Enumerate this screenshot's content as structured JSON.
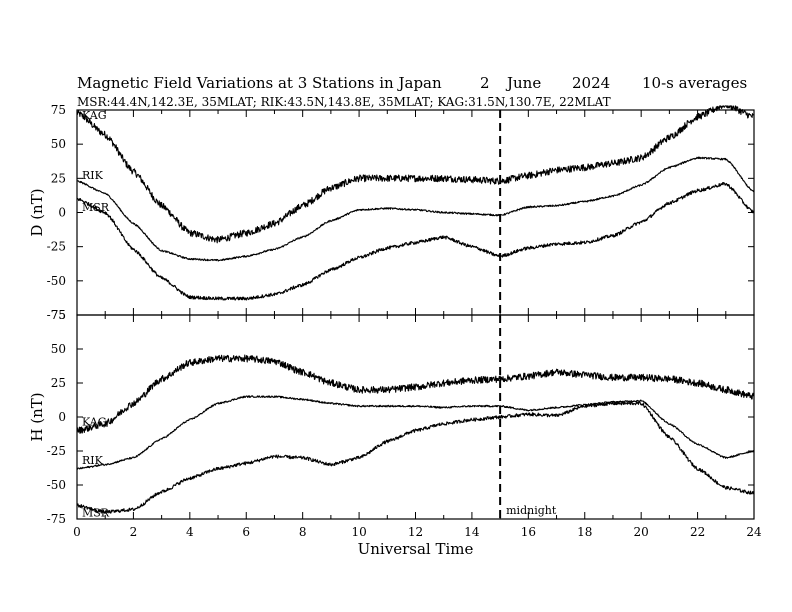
{
  "header": {
    "title": "Magnetic Field Variations at 3 Stations in Japan",
    "day": "2",
    "month": "June",
    "year": "2024",
    "averaging": "10-s averages",
    "station_info": "MSR:44.4N,142.3E, 35MLAT;  RIK:43.5N,143.8E, 35MLAT;  KAG:31.5N,130.7E, 22MLAT"
  },
  "chart_data": [
    {
      "type": "line",
      "ylabel": "D (nT)",
      "xlabel": "",
      "xlim": [
        0,
        24
      ],
      "ylim": [
        -75,
        75
      ],
      "yticks": [
        "75",
        "50",
        "25",
        "0",
        "-25",
        "-50",
        "-75"
      ],
      "series": [
        {
          "name": "KAG",
          "noise": 2.5,
          "x": [
            0,
            1,
            2,
            3,
            4,
            5,
            6,
            7,
            8,
            9,
            10,
            11,
            12,
            13,
            14,
            15,
            16,
            17,
            18,
            19,
            20,
            21,
            22,
            23,
            24
          ],
          "values": [
            73,
            57,
            30,
            5,
            -15,
            -20,
            -15,
            -8,
            5,
            18,
            25,
            25,
            25,
            25,
            24,
            23,
            27,
            31,
            33,
            36,
            40,
            55,
            70,
            79,
            70
          ]
        },
        {
          "name": "RIK",
          "noise": 0.6,
          "x": [
            0,
            1,
            2,
            3,
            4,
            5,
            6,
            7,
            8,
            9,
            10,
            11,
            12,
            13,
            14,
            15,
            16,
            17,
            18,
            19,
            20,
            21,
            22,
            23,
            24
          ],
          "values": [
            23,
            14,
            -8,
            -28,
            -34,
            -35,
            -32,
            -27,
            -18,
            -6,
            2,
            3,
            2,
            0,
            -1,
            -2,
            4,
            5,
            8,
            12,
            20,
            33,
            40,
            39,
            15
          ]
        },
        {
          "name": "MSR",
          "noise": 1.2,
          "x": [
            0,
            1,
            2,
            3,
            4,
            5,
            6,
            7,
            8,
            9,
            10,
            11,
            12,
            13,
            14,
            15,
            16,
            17,
            18,
            19,
            20,
            21,
            22,
            23,
            24
          ],
          "values": [
            10,
            0,
            -27,
            -48,
            -62,
            -63,
            -63,
            -60,
            -53,
            -42,
            -33,
            -26,
            -22,
            -18,
            -25,
            -32,
            -26,
            -23,
            -22,
            -17,
            -7,
            7,
            16,
            21,
            0
          ]
        }
      ],
      "series_labels": [
        {
          "series": "KAG",
          "text": "KAG"
        },
        {
          "series": "RIK",
          "text": "RIK"
        },
        {
          "series": "MSR",
          "text": "MSR"
        }
      ],
      "annotations": [
        {
          "type": "vertical_dashed_line",
          "x": 15
        }
      ]
    },
    {
      "type": "line",
      "ylabel": "H (nT)",
      "xlabel": "Universal Time",
      "xlim": [
        0,
        24
      ],
      "ylim": [
        -75,
        75
      ],
      "xticks": [
        "0",
        "2",
        "4",
        "6",
        "8",
        "10",
        "12",
        "14",
        "16",
        "18",
        "20",
        "22",
        "24"
      ],
      "yticks": [
        "75",
        "50",
        "25",
        "0",
        "-25",
        "-50",
        "-75"
      ],
      "series": [
        {
          "name": "KAG",
          "noise": 2.5,
          "x": [
            0,
            1,
            2,
            3,
            4,
            5,
            6,
            7,
            8,
            9,
            10,
            11,
            12,
            13,
            14,
            15,
            16,
            17,
            18,
            19,
            20,
            21,
            22,
            23,
            24
          ],
          "values": [
            -10,
            -5,
            10,
            28,
            40,
            43,
            43,
            41,
            33,
            25,
            20,
            20,
            22,
            25,
            27,
            28,
            30,
            33,
            31,
            29,
            29,
            28,
            25,
            20,
            15
          ]
        },
        {
          "name": "RIK",
          "noise": 0.6,
          "x": [
            0,
            1,
            2,
            3,
            4,
            5,
            6,
            7,
            8,
            9,
            10,
            11,
            12,
            13,
            14,
            15,
            16,
            17,
            18,
            19,
            20,
            21,
            22,
            23,
            24
          ],
          "values": [
            -38,
            -35,
            -30,
            -16,
            -2,
            10,
            15,
            15,
            13,
            10,
            8,
            8,
            8,
            7,
            8,
            8,
            5,
            7,
            9,
            11,
            12,
            -5,
            -20,
            -30,
            -25
          ]
        },
        {
          "name": "MSR",
          "noise": 1.2,
          "x": [
            0,
            1,
            2,
            3,
            4,
            5,
            6,
            7,
            8,
            9,
            10,
            11,
            12,
            13,
            14,
            15,
            16,
            17,
            18,
            19,
            20,
            21,
            22,
            23,
            24
          ],
          "values": [
            -65,
            -70,
            -68,
            -55,
            -45,
            -38,
            -34,
            -29,
            -30,
            -35,
            -30,
            -18,
            -10,
            -5,
            -2,
            0,
            2,
            1,
            8,
            10,
            10,
            -15,
            -38,
            -52,
            -56
          ]
        }
      ],
      "series_labels": [
        {
          "series": "KAG",
          "text": "KAG"
        },
        {
          "series": "RIK",
          "text": "RIK"
        },
        {
          "series": "MSR",
          "text": "MSR"
        }
      ],
      "annotations": [
        {
          "type": "vertical_dashed_line",
          "x": 15,
          "label": "midnight"
        }
      ]
    }
  ]
}
